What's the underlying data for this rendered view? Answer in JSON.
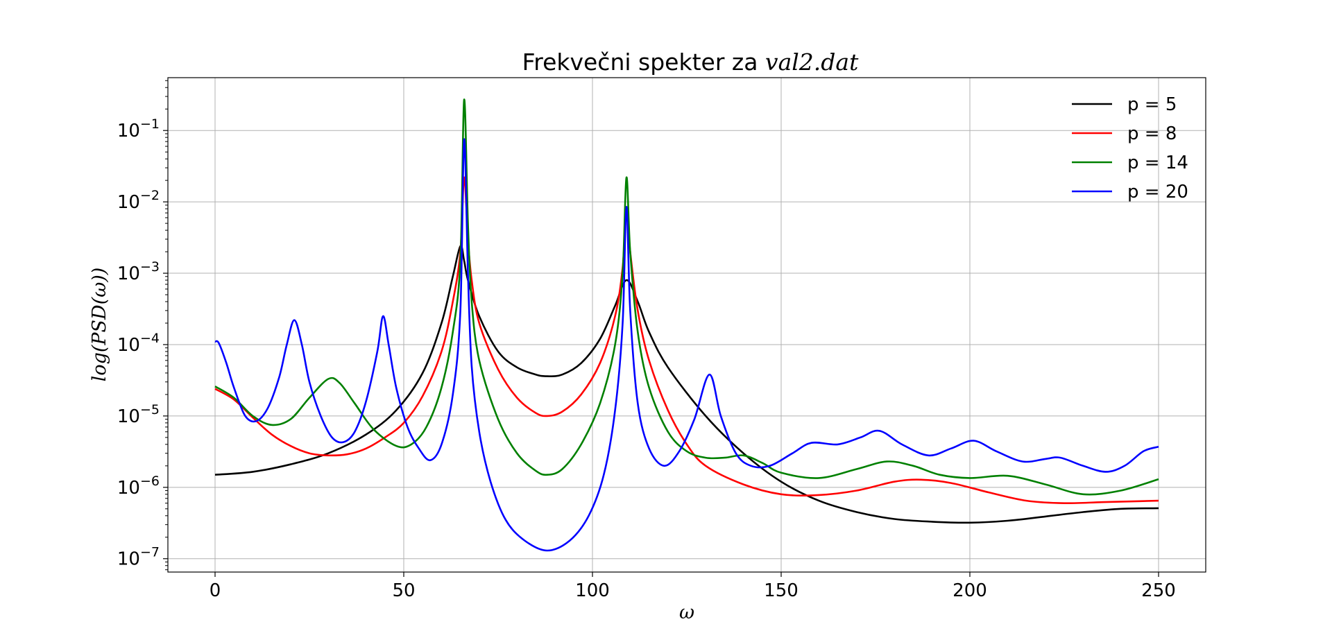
{
  "chart_data": {
    "type": "line",
    "title_prefix": "Frekvečni spekter za ",
    "title_math": "val2.dat",
    "xlabel": "ω",
    "ylabel": "log(PSD(ω))",
    "x_scale": "linear",
    "y_scale": "log",
    "xlim": [
      -12.5,
      262.5
    ],
    "ylim": [
      6.5e-08,
      0.55
    ],
    "x_ticks": [
      0,
      50,
      100,
      150,
      200,
      250
    ],
    "x_tick_labels": [
      "0",
      "50",
      "100",
      "150",
      "200",
      "250"
    ],
    "y_ticks": [
      1e-07,
      1e-06,
      1e-05,
      0.0001,
      0.001,
      0.01,
      0.1
    ],
    "y_tick_labels": [
      {
        "base": "10",
        "exp": "−7"
      },
      {
        "base": "10",
        "exp": "−6"
      },
      {
        "base": "10",
        "exp": "−5"
      },
      {
        "base": "10",
        "exp": "−4"
      },
      {
        "base": "10",
        "exp": "−3"
      },
      {
        "base": "10",
        "exp": "−2"
      },
      {
        "base": "10",
        "exp": "−1"
      }
    ],
    "grid": true,
    "legend_position": "top-right",
    "series": [
      {
        "name": "p = 5",
        "color": "#000000",
        "points": [
          [
            0,
            1.5e-06
          ],
          [
            10,
            1.65e-06
          ],
          [
            20,
            2.1e-06
          ],
          [
            30,
            3e-06
          ],
          [
            40,
            5.5e-06
          ],
          [
            48,
            1.2e-05
          ],
          [
            55,
            4e-05
          ],
          [
            60,
            0.0002
          ],
          [
            63,
            0.0009
          ],
          [
            65,
            0.0024
          ],
          [
            66,
            0.0015
          ],
          [
            67,
            0.0008
          ],
          [
            70,
            0.00025
          ],
          [
            75,
            8e-05
          ],
          [
            80,
            4.8e-05
          ],
          [
            85,
            3.8e-05
          ],
          [
            88,
            3.6e-05
          ],
          [
            92,
            3.8e-05
          ],
          [
            97,
            5.5e-05
          ],
          [
            102,
            0.00012
          ],
          [
            106,
            0.00035
          ],
          [
            109,
            0.0008
          ],
          [
            112,
            0.0004
          ],
          [
            115,
            0.00015
          ],
          [
            120,
            4.8e-05
          ],
          [
            130,
            1e-05
          ],
          [
            140,
            3e-06
          ],
          [
            150,
            1.2e-06
          ],
          [
            160,
            6.5e-07
          ],
          [
            170,
            4.5e-07
          ],
          [
            180,
            3.6e-07
          ],
          [
            190,
            3.3e-07
          ],
          [
            200,
            3.2e-07
          ],
          [
            210,
            3.4e-07
          ],
          [
            220,
            3.9e-07
          ],
          [
            230,
            4.5e-07
          ],
          [
            240,
            5e-07
          ],
          [
            250,
            5.1e-07
          ]
        ]
      },
      {
        "name": "p = 8",
        "color": "#ff0000",
        "points": [
          [
            0,
            2.4e-05
          ],
          [
            5,
            1.7e-05
          ],
          [
            10,
            9.5e-06
          ],
          [
            15,
            5.5e-06
          ],
          [
            20,
            3.8e-06
          ],
          [
            25,
            3e-06
          ],
          [
            30,
            2.8e-06
          ],
          [
            35,
            2.9e-06
          ],
          [
            40,
            3.5e-06
          ],
          [
            45,
            5e-06
          ],
          [
            50,
            8e-06
          ],
          [
            55,
            1.9e-05
          ],
          [
            60,
            8e-05
          ],
          [
            63,
            0.0004
          ],
          [
            65,
            0.002
          ],
          [
            66,
            0.022
          ],
          [
            67,
            0.003
          ],
          [
            68,
            0.0008
          ],
          [
            70,
            0.0002
          ],
          [
            75,
            4.5e-05
          ],
          [
            80,
            1.8e-05
          ],
          [
            85,
            1.1e-05
          ],
          [
            88,
            1e-05
          ],
          [
            92,
            1.15e-05
          ],
          [
            97,
            2e-05
          ],
          [
            102,
            5.5e-05
          ],
          [
            106,
            0.00025
          ],
          [
            108,
            0.0012
          ],
          [
            109,
            0.007
          ],
          [
            110,
            0.002
          ],
          [
            112,
            0.0003
          ],
          [
            115,
            6e-05
          ],
          [
            120,
            1.2e-05
          ],
          [
            125,
            4e-06
          ],
          [
            130,
            2e-06
          ],
          [
            140,
            1.1e-06
          ],
          [
            150,
            8e-07
          ],
          [
            160,
            7.8e-07
          ],
          [
            170,
            9e-07
          ],
          [
            180,
            1.2e-06
          ],
          [
            187,
            1.28e-06
          ],
          [
            195,
            1.15e-06
          ],
          [
            205,
            8.5e-07
          ],
          [
            215,
            6.5e-07
          ],
          [
            225,
            6e-07
          ],
          [
            235,
            6.2e-07
          ],
          [
            245,
            6.4e-07
          ],
          [
            250,
            6.5e-07
          ]
        ]
      },
      {
        "name": "p = 14",
        "color": "#008000",
        "points": [
          [
            0,
            2.6e-05
          ],
          [
            5,
            1.8e-05
          ],
          [
            10,
            1e-05
          ],
          [
            15,
            7.5e-06
          ],
          [
            20,
            9e-06
          ],
          [
            25,
            1.8e-05
          ],
          [
            30,
            3.3e-05
          ],
          [
            33,
            2.9e-05
          ],
          [
            37,
            1.5e-05
          ],
          [
            42,
            6.5e-06
          ],
          [
            48,
            3.8e-06
          ],
          [
            52,
            4e-06
          ],
          [
            56,
            7e-06
          ],
          [
            60,
            2.5e-05
          ],
          [
            63,
            0.00015
          ],
          [
            65,
            0.0015
          ],
          [
            66,
            0.27
          ],
          [
            67,
            0.005
          ],
          [
            68,
            0.0004
          ],
          [
            70,
            6e-05
          ],
          [
            75,
            9e-06
          ],
          [
            80,
            3e-06
          ],
          [
            85,
            1.7e-06
          ],
          [
            88,
            1.5e-06
          ],
          [
            92,
            1.8e-06
          ],
          [
            97,
            4e-06
          ],
          [
            102,
            1.5e-05
          ],
          [
            106,
            0.0001
          ],
          [
            108,
            0.001
          ],
          [
            109,
            0.022
          ],
          [
            110,
            0.002
          ],
          [
            112,
            0.00015
          ],
          [
            115,
            2.5e-05
          ],
          [
            120,
            6e-06
          ],
          [
            125,
            3.2e-06
          ],
          [
            130,
            2.6e-06
          ],
          [
            135,
            2.6e-06
          ],
          [
            140,
            2.8e-06
          ],
          [
            145,
            2.2e-06
          ],
          [
            150,
            1.6e-06
          ],
          [
            160,
            1.35e-06
          ],
          [
            170,
            1.8e-06
          ],
          [
            178,
            2.3e-06
          ],
          [
            185,
            2e-06
          ],
          [
            192,
            1.5e-06
          ],
          [
            200,
            1.35e-06
          ],
          [
            210,
            1.45e-06
          ],
          [
            220,
            1.1e-06
          ],
          [
            230,
            8e-07
          ],
          [
            240,
            9e-07
          ],
          [
            250,
            1.3e-06
          ]
        ]
      },
      {
        "name": "p = 20",
        "color": "#0000ff",
        "points": [
          [
            0,
            0.00011
          ],
          [
            1,
            0.000105
          ],
          [
            3,
            5.5e-05
          ],
          [
            5,
            2.5e-05
          ],
          [
            8,
            1e-05
          ],
          [
            11,
            8.5e-06
          ],
          [
            14,
            1.3e-05
          ],
          [
            17,
            3.5e-05
          ],
          [
            19,
            0.0001
          ],
          [
            21,
            0.00022
          ],
          [
            23,
            0.0001
          ],
          [
            25,
            3e-05
          ],
          [
            28,
            1e-05
          ],
          [
            31,
            5e-06
          ],
          [
            34,
            4.3e-06
          ],
          [
            37,
            6e-06
          ],
          [
            40,
            1.6e-05
          ],
          [
            43,
            8e-05
          ],
          [
            44.5,
            0.00025
          ],
          [
            46,
            0.0001
          ],
          [
            48,
            2.5e-05
          ],
          [
            51,
            7e-06
          ],
          [
            54,
            3.5e-06
          ],
          [
            57,
            2.4e-06
          ],
          [
            60,
            4e-06
          ],
          [
            63,
            2e-05
          ],
          [
            65,
            0.0003
          ],
          [
            66,
            0.075
          ],
          [
            67,
            0.001
          ],
          [
            68,
            5e-05
          ],
          [
            70,
            6e-06
          ],
          [
            73,
            1.2e-06
          ],
          [
            77,
            3.5e-07
          ],
          [
            82,
            1.8e-07
          ],
          [
            88,
            1.3e-07
          ],
          [
            94,
            1.8e-07
          ],
          [
            99,
            4e-07
          ],
          [
            103,
            1.5e-06
          ],
          [
            106,
            1.2e-05
          ],
          [
            108,
            0.0002
          ],
          [
            109,
            0.0085
          ],
          [
            110,
            0.0003
          ],
          [
            112,
            1.5e-05
          ],
          [
            115,
            3.5e-06
          ],
          [
            119,
            2e-06
          ],
          [
            123,
            3.2e-06
          ],
          [
            127,
            9e-06
          ],
          [
            131,
            3.8e-05
          ],
          [
            134,
            1e-05
          ],
          [
            138,
            3e-06
          ],
          [
            142,
            2e-06
          ],
          [
            147,
            2e-06
          ],
          [
            153,
            3e-06
          ],
          [
            158,
            4.2e-06
          ],
          [
            165,
            4e-06
          ],
          [
            171,
            5e-06
          ],
          [
            176,
            6.2e-06
          ],
          [
            182,
            4e-06
          ],
          [
            189,
            2.8e-06
          ],
          [
            195,
            3.5e-06
          ],
          [
            201,
            4.5e-06
          ],
          [
            207,
            3.2e-06
          ],
          [
            214,
            2.3e-06
          ],
          [
            220,
            2.5e-06
          ],
          [
            224,
            2.6e-06
          ],
          [
            230,
            2e-06
          ],
          [
            236,
            1.65e-06
          ],
          [
            241,
            2e-06
          ],
          [
            246,
            3.2e-06
          ],
          [
            250,
            3.7e-06
          ]
        ]
      }
    ]
  }
}
